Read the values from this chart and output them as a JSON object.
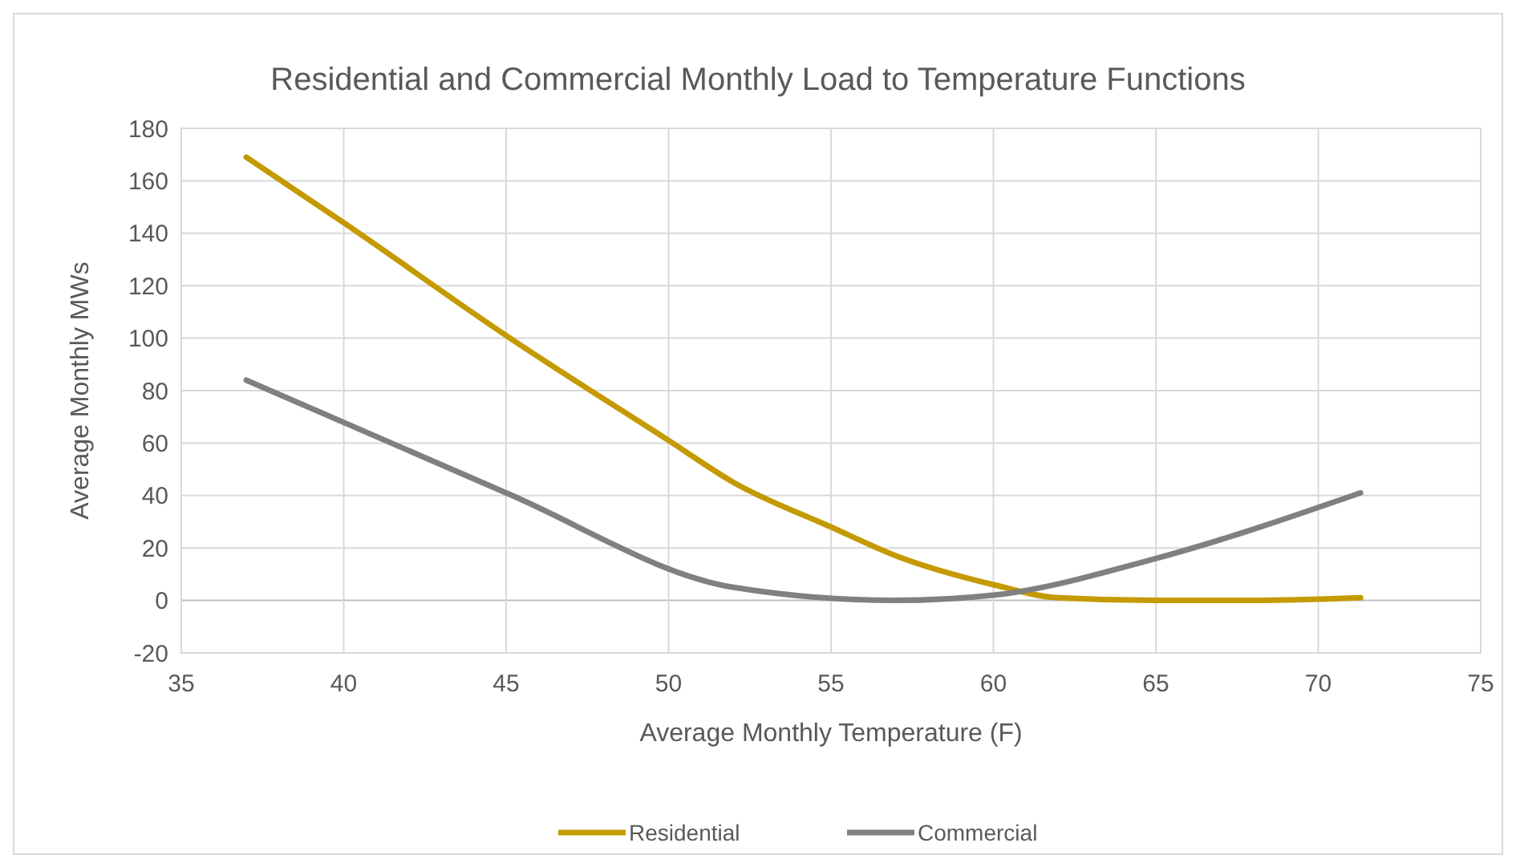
{
  "chart_data": {
    "type": "line",
    "title": "Residential and Commercial Monthly Load to Temperature Functions",
    "xlabel": "Average Monthly Temperature (F)",
    "ylabel": "Average Monthly MWs",
    "xlim": [
      35,
      75
    ],
    "xticks": [
      35,
      40,
      45,
      50,
      55,
      60,
      65,
      70,
      75
    ],
    "ylim": [
      -20,
      180
    ],
    "yticks": [
      -20,
      0,
      20,
      40,
      60,
      80,
      100,
      120,
      140,
      160,
      180
    ],
    "grid": true,
    "legend": "bottom",
    "marker": "none",
    "series": [
      {
        "name": "Residential",
        "color": "#c49a00",
        "x": [
          37,
          40,
          45,
          50,
          52,
          55,
          57,
          60,
          62,
          65,
          68,
          71.3
        ],
        "values": [
          169,
          144,
          101,
          61,
          45,
          28,
          17,
          6,
          1,
          0,
          0,
          1
        ]
      },
      {
        "name": "Commercial",
        "color": "#808080",
        "x": [
          37,
          45,
          52,
          57,
          60,
          65,
          71.3
        ],
        "values": [
          84,
          41,
          5,
          0,
          2,
          16,
          41
        ]
      }
    ]
  }
}
